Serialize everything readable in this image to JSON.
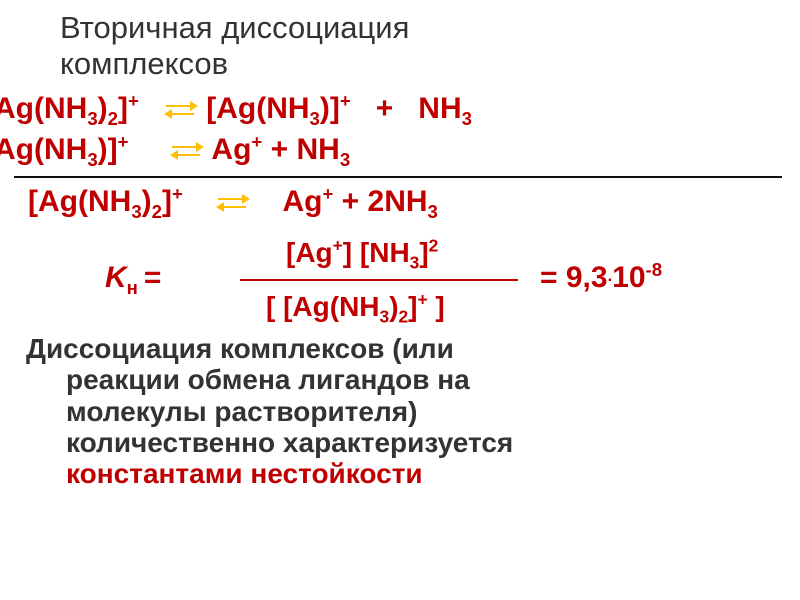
{
  "title": {
    "line1": "Вторичная диссоциация",
    "line2": "комплексов"
  },
  "equations": {
    "step1": {
      "left": "Ag(NH₃)₂]⁺",
      "right_complex": "[Ag(NH₃)]⁺",
      "plus": "+",
      "right_free": "NH₃"
    },
    "step2": {
      "left": "Ag(NH₃)]⁺",
      "right_ion": "Ag⁺",
      "plus": "+",
      "right_free": "NH₃"
    },
    "overall": {
      "left": "[Ag(NH₃)₂]⁺",
      "right_ion": "Ag⁺",
      "plus": "+",
      "right_free": "2NH₃"
    }
  },
  "constant": {
    "symbol_K": "K",
    "symbol_sub": "н",
    "eq": "=",
    "numerator": "[Ag⁺] [NH₃]²",
    "denominator": "[ [Ag(NH₃)₂]⁺ ]",
    "value_prefix": "=  9,3",
    "value_exp": "10⁻⁸"
  },
  "body": {
    "l1": "Диссоциация комплексов (или",
    "l2": "реакции обмена лигандов на",
    "l3": "молекулы растворителя)",
    "l4": "количественно характеризуется",
    "l5": "константами нестойкости"
  },
  "colors": {
    "text": "#333333",
    "accent": "#c00000",
    "arrow": "#ffbf00",
    "rule": "#111111",
    "background": "#ffffff"
  },
  "fonts": {
    "title_size": 31,
    "equation_size": 30,
    "body_size": 28,
    "family": "Arial"
  }
}
